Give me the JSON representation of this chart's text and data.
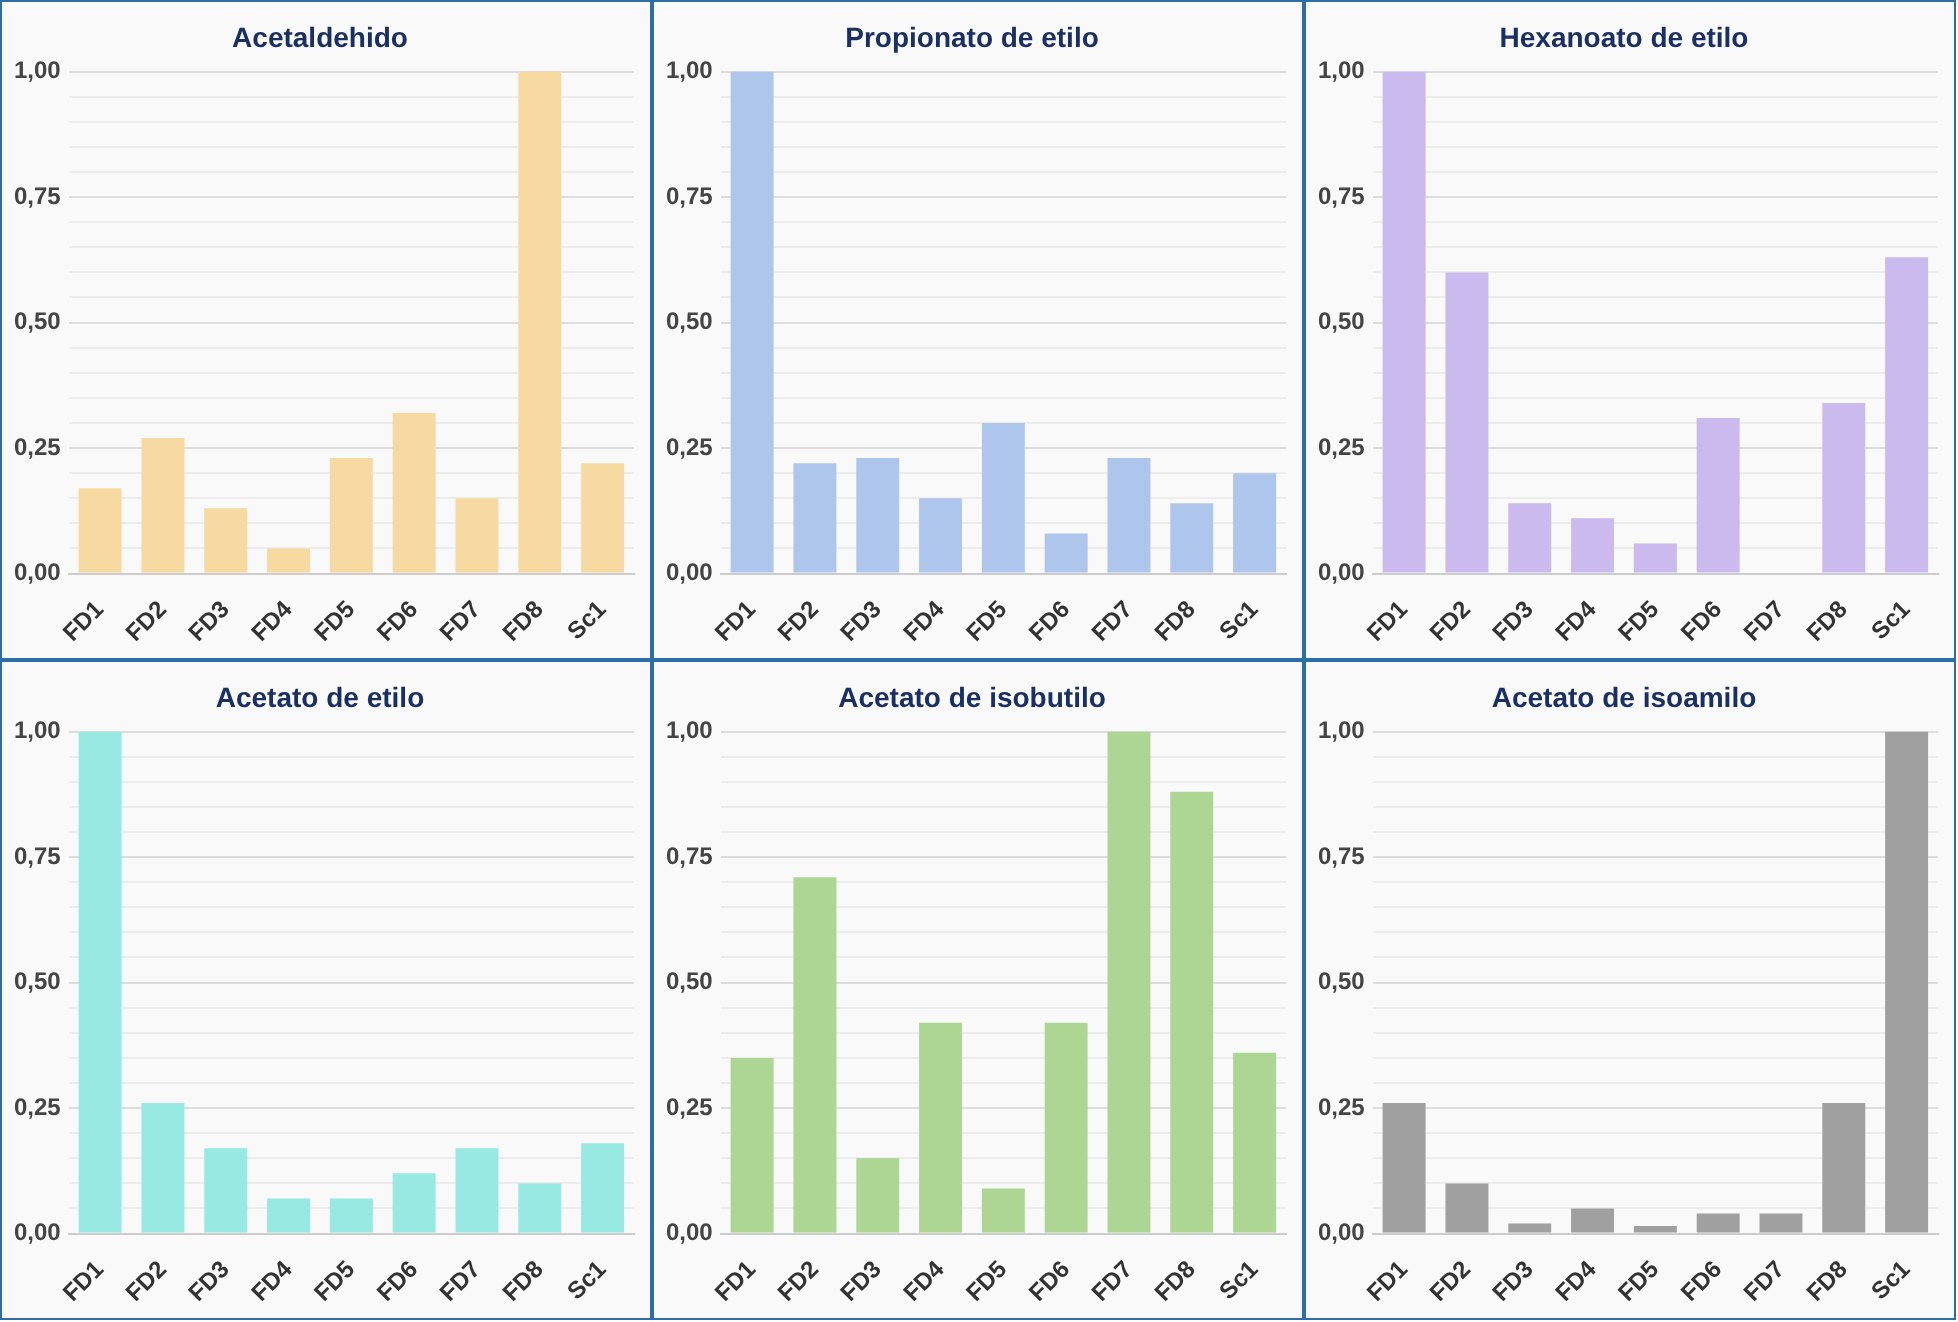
{
  "chart_data": [
    {
      "type": "bar",
      "title": "Acetaldehido",
      "categories": [
        "FD1",
        "FD2",
        "FD3",
        "FD4",
        "FD5",
        "FD6",
        "FD7",
        "FD8",
        "Sc1"
      ],
      "values": [
        0.17,
        0.27,
        0.13,
        0.05,
        0.23,
        0.32,
        0.15,
        1.0,
        0.22
      ],
      "color": "#f6daa2",
      "ylim": [
        0,
        1
      ],
      "yticks": [
        {
          "value": 0,
          "label": "0,00"
        },
        {
          "value": 0.05,
          "label": null
        },
        {
          "value": 0.1,
          "label": null
        },
        {
          "value": 0.15,
          "label": null
        },
        {
          "value": 0.2,
          "label": null
        },
        {
          "value": 0.25,
          "label": "0,25"
        },
        {
          "value": 0.3,
          "label": null
        },
        {
          "value": 0.35,
          "label": null
        },
        {
          "value": 0.4,
          "label": null
        },
        {
          "value": 0.45,
          "label": null
        },
        {
          "value": 0.5,
          "label": "0,50"
        },
        {
          "value": 0.55,
          "label": null
        },
        {
          "value": 0.6,
          "label": null
        },
        {
          "value": 0.65,
          "label": null
        },
        {
          "value": 0.7,
          "label": null
        },
        {
          "value": 0.75,
          "label": "0,75"
        },
        {
          "value": 0.8,
          "label": null
        },
        {
          "value": 0.85,
          "label": null
        },
        {
          "value": 0.9,
          "label": null
        },
        {
          "value": 0.95,
          "label": null
        },
        {
          "value": 1,
          "label": "1,00"
        }
      ],
      "grid": "y",
      "legend": false
    },
    {
      "type": "bar",
      "title": "Propionato de etilo",
      "categories": [
        "FD1",
        "FD2",
        "FD3",
        "FD4",
        "FD5",
        "FD6",
        "FD7",
        "FD8",
        "Sc1"
      ],
      "values": [
        1.0,
        0.22,
        0.23,
        0.15,
        0.3,
        0.08,
        0.23,
        0.14,
        0.2
      ],
      "color": "#aec6eb",
      "ylim": [
        0,
        1
      ],
      "yticks": [
        {
          "value": 0,
          "label": "0,00"
        },
        {
          "value": 0.05,
          "label": null
        },
        {
          "value": 0.1,
          "label": null
        },
        {
          "value": 0.15,
          "label": null
        },
        {
          "value": 0.2,
          "label": null
        },
        {
          "value": 0.25,
          "label": "0,25"
        },
        {
          "value": 0.3,
          "label": null
        },
        {
          "value": 0.35,
          "label": null
        },
        {
          "value": 0.4,
          "label": null
        },
        {
          "value": 0.45,
          "label": null
        },
        {
          "value": 0.5,
          "label": "0,50"
        },
        {
          "value": 0.55,
          "label": null
        },
        {
          "value": 0.6,
          "label": null
        },
        {
          "value": 0.65,
          "label": null
        },
        {
          "value": 0.7,
          "label": null
        },
        {
          "value": 0.75,
          "label": "0,75"
        },
        {
          "value": 0.8,
          "label": null
        },
        {
          "value": 0.85,
          "label": null
        },
        {
          "value": 0.9,
          "label": null
        },
        {
          "value": 0.95,
          "label": null
        },
        {
          "value": 1,
          "label": "1,00"
        }
      ],
      "grid": "y",
      "legend": false
    },
    {
      "type": "bar",
      "title": "Hexanoato de etilo",
      "categories": [
        "FD1",
        "FD2",
        "FD3",
        "FD4",
        "FD5",
        "FD6",
        "FD7",
        "FD8",
        "Sc1"
      ],
      "values": [
        1.0,
        0.6,
        0.14,
        0.11,
        0.06,
        0.31,
        0,
        0.34,
        0.63
      ],
      "color": "#cabaed",
      "ylim": [
        0,
        1
      ],
      "yticks": [
        {
          "value": 0,
          "label": "0,00"
        },
        {
          "value": 0.05,
          "label": null
        },
        {
          "value": 0.1,
          "label": null
        },
        {
          "value": 0.15,
          "label": null
        },
        {
          "value": 0.2,
          "label": null
        },
        {
          "value": 0.25,
          "label": "0,25"
        },
        {
          "value": 0.3,
          "label": null
        },
        {
          "value": 0.35,
          "label": null
        },
        {
          "value": 0.4,
          "label": null
        },
        {
          "value": 0.45,
          "label": null
        },
        {
          "value": 0.5,
          "label": "0,50"
        },
        {
          "value": 0.55,
          "label": null
        },
        {
          "value": 0.6,
          "label": null
        },
        {
          "value": 0.65,
          "label": null
        },
        {
          "value": 0.7,
          "label": null
        },
        {
          "value": 0.75,
          "label": "0,75"
        },
        {
          "value": 0.8,
          "label": null
        },
        {
          "value": 0.85,
          "label": null
        },
        {
          "value": 0.9,
          "label": null
        },
        {
          "value": 0.95,
          "label": null
        },
        {
          "value": 1,
          "label": "1,00"
        }
      ],
      "grid": "y",
      "legend": false
    },
    {
      "type": "bar",
      "title": "Acetato de etilo",
      "categories": [
        "FD1",
        "FD2",
        "FD3",
        "FD4",
        "FD5",
        "FD6",
        "FD7",
        "FD8",
        "Sc1"
      ],
      "values": [
        1.0,
        0.26,
        0.17,
        0.07,
        0.07,
        0.12,
        0.17,
        0.1,
        0.18
      ],
      "color": "#98e9e2",
      "ylim": [
        0,
        1
      ],
      "yticks": [
        {
          "value": 0,
          "label": "0,00"
        },
        {
          "value": 0.05,
          "label": null
        },
        {
          "value": 0.1,
          "label": null
        },
        {
          "value": 0.15,
          "label": null
        },
        {
          "value": 0.2,
          "label": null
        },
        {
          "value": 0.25,
          "label": "0,25"
        },
        {
          "value": 0.3,
          "label": null
        },
        {
          "value": 0.35,
          "label": null
        },
        {
          "value": 0.4,
          "label": null
        },
        {
          "value": 0.45,
          "label": null
        },
        {
          "value": 0.5,
          "label": "0,50"
        },
        {
          "value": 0.55,
          "label": null
        },
        {
          "value": 0.6,
          "label": null
        },
        {
          "value": 0.65,
          "label": null
        },
        {
          "value": 0.7,
          "label": null
        },
        {
          "value": 0.75,
          "label": "0,75"
        },
        {
          "value": 0.8,
          "label": null
        },
        {
          "value": 0.85,
          "label": null
        },
        {
          "value": 0.9,
          "label": null
        },
        {
          "value": 0.95,
          "label": null
        },
        {
          "value": 1,
          "label": "1,00"
        }
      ],
      "grid": "y",
      "legend": false
    },
    {
      "type": "bar",
      "title": "Acetato de isobutilo",
      "categories": [
        "FD1",
        "FD2",
        "FD3",
        "FD4",
        "FD5",
        "FD6",
        "FD7",
        "FD8",
        "Sc1"
      ],
      "values": [
        0.35,
        0.71,
        0.15,
        0.42,
        0.09,
        0.42,
        1.0,
        0.88,
        0.36
      ],
      "color": "#add695",
      "ylim": [
        0,
        1
      ],
      "yticks": [
        {
          "value": 0,
          "label": "0,00"
        },
        {
          "value": 0.05,
          "label": null
        },
        {
          "value": 0.1,
          "label": null
        },
        {
          "value": 0.15,
          "label": null
        },
        {
          "value": 0.2,
          "label": null
        },
        {
          "value": 0.25,
          "label": "0,25"
        },
        {
          "value": 0.3,
          "label": null
        },
        {
          "value": 0.35,
          "label": null
        },
        {
          "value": 0.4,
          "label": null
        },
        {
          "value": 0.45,
          "label": null
        },
        {
          "value": 0.5,
          "label": "0,50"
        },
        {
          "value": 0.55,
          "label": null
        },
        {
          "value": 0.6,
          "label": null
        },
        {
          "value": 0.65,
          "label": null
        },
        {
          "value": 0.7,
          "label": null
        },
        {
          "value": 0.75,
          "label": "0,75"
        },
        {
          "value": 0.8,
          "label": null
        },
        {
          "value": 0.85,
          "label": null
        },
        {
          "value": 0.9,
          "label": null
        },
        {
          "value": 0.95,
          "label": null
        },
        {
          "value": 1,
          "label": "1,00"
        }
      ],
      "grid": "y",
      "legend": false
    },
    {
      "type": "bar",
      "title": "Acetato de isoamilo",
      "categories": [
        "FD1",
        "FD2",
        "FD3",
        "FD4",
        "FD5",
        "FD6",
        "FD7",
        "FD8",
        "Sc1"
      ],
      "values": [
        0.26,
        0.1,
        0.02,
        0.05,
        0.015,
        0.04,
        0.04,
        0.26,
        1.0
      ],
      "color": "#a0a0a0",
      "ylim": [
        0,
        1
      ],
      "yticks": [
        {
          "value": 0,
          "label": "0,00"
        },
        {
          "value": 0.05,
          "label": null
        },
        {
          "value": 0.1,
          "label": null
        },
        {
          "value": 0.15,
          "label": null
        },
        {
          "value": 0.2,
          "label": null
        },
        {
          "value": 0.25,
          "label": "0,25"
        },
        {
          "value": 0.3,
          "label": null
        },
        {
          "value": 0.35,
          "label": null
        },
        {
          "value": 0.4,
          "label": null
        },
        {
          "value": 0.45,
          "label": null
        },
        {
          "value": 0.5,
          "label": "0,50"
        },
        {
          "value": 0.55,
          "label": null
        },
        {
          "value": 0.6,
          "label": null
        },
        {
          "value": 0.65,
          "label": null
        },
        {
          "value": 0.7,
          "label": null
        },
        {
          "value": 0.75,
          "label": "0,75"
        },
        {
          "value": 0.8,
          "label": null
        },
        {
          "value": 0.85,
          "label": null
        },
        {
          "value": 0.9,
          "label": null
        },
        {
          "value": 0.95,
          "label": null
        },
        {
          "value": 1,
          "label": "1,00"
        }
      ],
      "grid": "y",
      "legend": false
    }
  ]
}
